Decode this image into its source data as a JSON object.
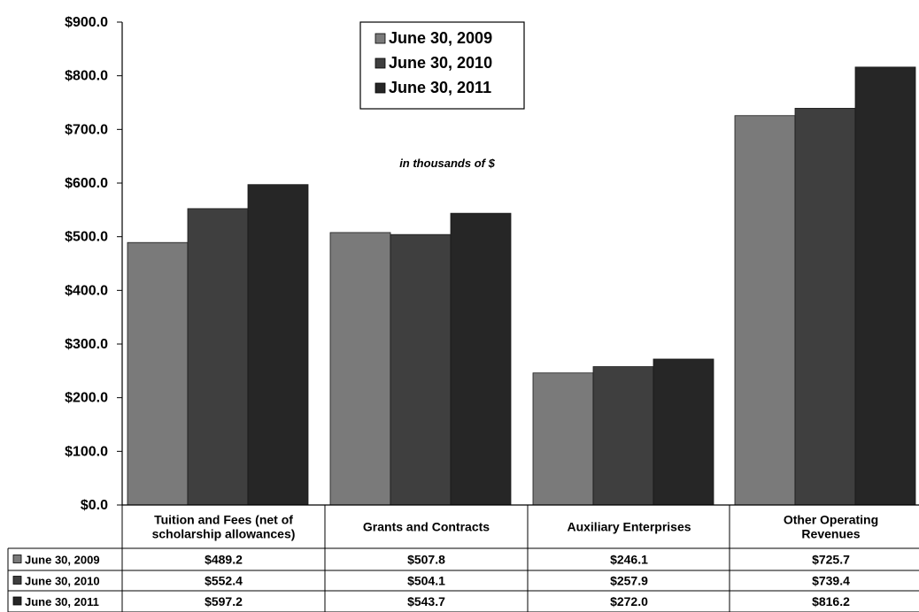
{
  "chart_data": {
    "type": "bar",
    "title": "",
    "note": "in thousands  of $",
    "xlabel": "",
    "ylabel": "",
    "ylim": [
      0,
      900
    ],
    "yticks": [
      0,
      100,
      200,
      300,
      400,
      500,
      600,
      700,
      800,
      900
    ],
    "ytick_labels": [
      "$0.0",
      "$100.0",
      "$200.0",
      "$300.0",
      "$400.0",
      "$500.0",
      "$600.0",
      "$700.0",
      "$800.0",
      "$900.0"
    ],
    "grid": false,
    "legend_position": "top-center",
    "categories": [
      "Tuition and Fees (net of scholarship allowances)",
      "Grants and Contracts",
      "Auxiliary Enterprises",
      "Other Operating Revenues"
    ],
    "category_label_lines": [
      [
        "Tuition and Fees (net of",
        "scholarship allowances)"
      ],
      [
        "Grants and Contracts"
      ],
      [
        "Auxiliary Enterprises"
      ],
      [
        "Other Operating",
        "Revenues"
      ]
    ],
    "series": [
      {
        "name": "June 30, 2009",
        "values": [
          489.2,
          507.8,
          246.1,
          725.7
        ],
        "labels": [
          "$489.2",
          "$507.8",
          "$246.1",
          "$725.7"
        ],
        "color": "#7a7a7a"
      },
      {
        "name": "June 30, 2010",
        "values": [
          552.4,
          504.1,
          257.9,
          739.4
        ],
        "labels": [
          "$552.4",
          "$504.1",
          "$257.9",
          "$739.4"
        ],
        "color": "#3f3f3f"
      },
      {
        "name": "June 30, 2011",
        "values": [
          597.2,
          543.7,
          272.0,
          816.2
        ],
        "labels": [
          "$597.2",
          "$543.7",
          "$272.0",
          "$816.2"
        ],
        "color": "#262626"
      }
    ]
  }
}
